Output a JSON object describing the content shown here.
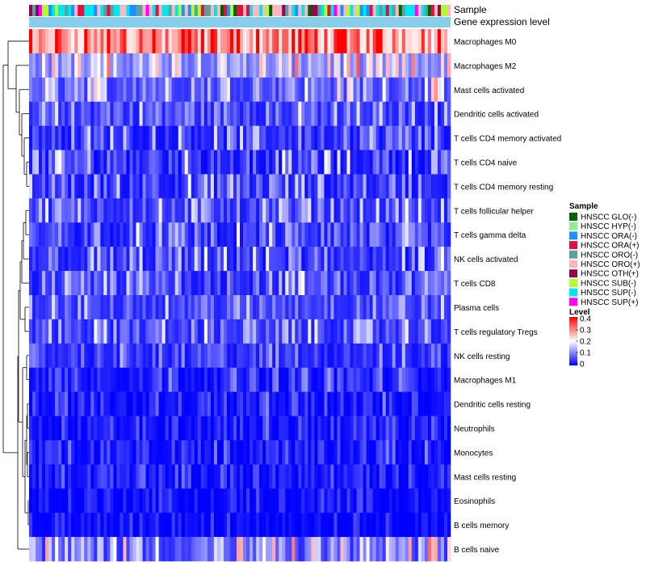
{
  "chart_data": {
    "type": "heatmap",
    "title": "",
    "annotation_tracks": [
      "Sample",
      "Gene expression level"
    ],
    "column_count": 130,
    "rows": [
      {
        "label": "Macrophages M0",
        "mean": 0.28,
        "spread": 0.12
      },
      {
        "label": "Macrophages M2",
        "mean": 0.13,
        "spread": 0.09
      },
      {
        "label": "Mast cells activated",
        "mean": 0.09,
        "spread": 0.09
      },
      {
        "label": "Dendritic cells activated",
        "mean": 0.06,
        "spread": 0.07
      },
      {
        "label": "T cells CD4 memory activated",
        "mean": 0.05,
        "spread": 0.07
      },
      {
        "label": "T cells CD4 naive",
        "mean": 0.05,
        "spread": 0.08
      },
      {
        "label": "T cells CD4 memory resting",
        "mean": 0.05,
        "spread": 0.07
      },
      {
        "label": "T cells follicular helper",
        "mean": 0.06,
        "spread": 0.07
      },
      {
        "label": "T cells gamma delta",
        "mean": 0.05,
        "spread": 0.07
      },
      {
        "label": "NK cells activated",
        "mean": 0.05,
        "spread": 0.07
      },
      {
        "label": "T cells CD8",
        "mean": 0.06,
        "spread": 0.08
      },
      {
        "label": "Plasma cells",
        "mean": 0.06,
        "spread": 0.06
      },
      {
        "label": "T cells regulatory  Tregs",
        "mean": 0.06,
        "spread": 0.07
      },
      {
        "label": "NK cells resting",
        "mean": 0.04,
        "spread": 0.05
      },
      {
        "label": "Macrophages M1",
        "mean": 0.03,
        "spread": 0.05
      },
      {
        "label": "Dendritic cells resting",
        "mean": 0.02,
        "spread": 0.04
      },
      {
        "label": "Neutrophils",
        "mean": 0.02,
        "spread": 0.04
      },
      {
        "label": "Monocytes",
        "mean": 0.02,
        "spread": 0.04
      },
      {
        "label": "Mast cells resting",
        "mean": 0.02,
        "spread": 0.04
      },
      {
        "label": "Eosinophils",
        "mean": 0.01,
        "spread": 0.03
      },
      {
        "label": "B cells memory",
        "mean": 0.01,
        "spread": 0.03
      },
      {
        "label": "B cells naive",
        "mean": 0.09,
        "spread": 0.1
      }
    ],
    "legend_sample": {
      "title": "Sample",
      "items": [
        {
          "label": "HNSCC GLO(-)",
          "color": "#006400"
        },
        {
          "label": "HNSCC HYP(-)",
          "color": "#90ee90"
        },
        {
          "label": "HNSCC ORA(-)",
          "color": "#1e90ff"
        },
        {
          "label": "HNSCC ORA(+)",
          "color": "#dc143c"
        },
        {
          "label": "HNSCC ORO(-)",
          "color": "#5f9ea0"
        },
        {
          "label": "HNSCC ORO(+)",
          "color": "#ffb6c1"
        },
        {
          "label": "HNSCC OTH(+)",
          "color": "#8b0a50"
        },
        {
          "label": "HNSCC SUB(-)",
          "color": "#adff2f"
        },
        {
          "label": "HNSCC SUP(-)",
          "color": "#00e5ee"
        },
        {
          "label": "HNSCC SUP(+)",
          "color": "#ff00ff"
        }
      ]
    },
    "legend_level": {
      "title": "Level",
      "ticks": [
        "0.4",
        "0.3",
        "0.2",
        "0.1",
        "0"
      ],
      "range": [
        0,
        0.4
      ],
      "colors": {
        "low": "#0000ff",
        "mid": "#ffffff",
        "high": "#ff0000"
      }
    },
    "gene_expression_track_color": "#87ceeb"
  }
}
